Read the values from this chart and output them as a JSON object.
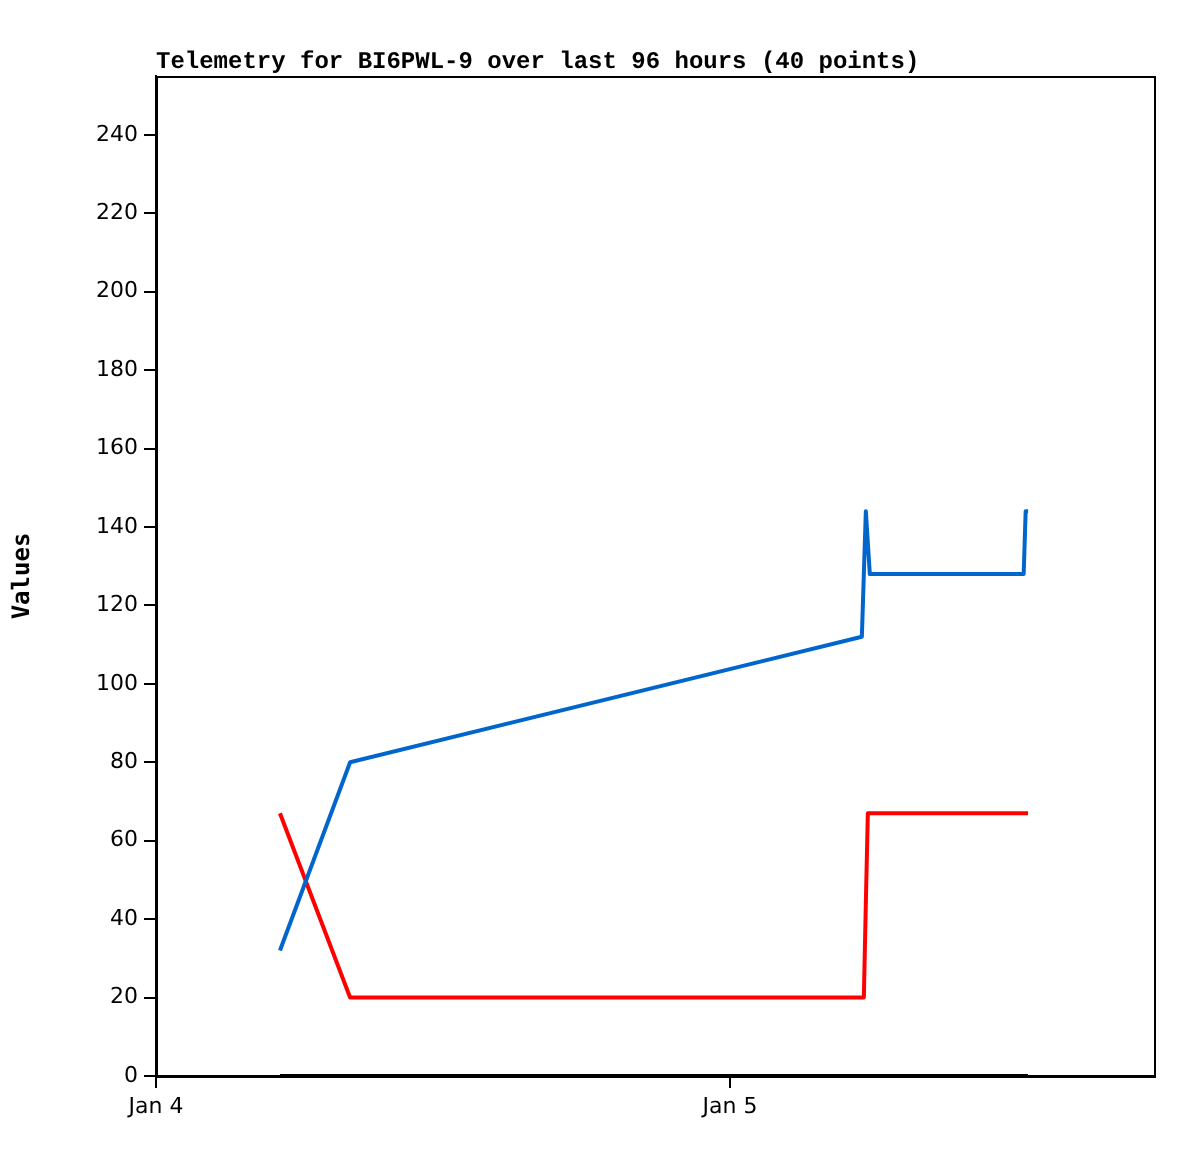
{
  "chart_data": {
    "type": "line",
    "title": "Telemetry for BI6PWL-9 over last 96 hours (40 points)",
    "ylabel": "Values",
    "xlim": [
      "--01-04T00:00",
      "--01-05T17:44"
    ],
    "xticks": [
      {
        "value": "--01-04",
        "label": "Jan 4"
      },
      {
        "value": "--01-05",
        "label": "Jan 5"
      }
    ],
    "ylim": [
      0,
      255
    ],
    "yticks": [
      0,
      20,
      40,
      60,
      80,
      100,
      120,
      140,
      160,
      180,
      200,
      220,
      240
    ],
    "grid": false,
    "legend": false,
    "marker": "none",
    "line_style": "solid",
    "series": [
      {
        "color": "#0066cc",
        "x": [
          "--01-04T05:11",
          "--01-04T08:07",
          "--01-05T05:31",
          "--01-05T05:36",
          "--01-05T05:41",
          "--01-05T05:51",
          "--01-05T12:17",
          "--01-05T12:22",
          "--01-05T12:28"
        ],
        "values": [
          32,
          80,
          112,
          128,
          144,
          128,
          128,
          144,
          144
        ]
      },
      {
        "color": "#ff0000",
        "x": [
          "--01-04T05:11",
          "--01-04T08:07",
          "--01-05T05:36",
          "--01-05T05:41",
          "--01-05T05:46",
          "--01-05T12:28"
        ],
        "values": [
          67,
          20,
          20,
          44,
          67,
          67
        ]
      },
      {
        "color": "#000000",
        "x": [
          "--01-04T05:11",
          "--01-05T12:28"
        ],
        "values": [
          0,
          0
        ]
      }
    ]
  }
}
